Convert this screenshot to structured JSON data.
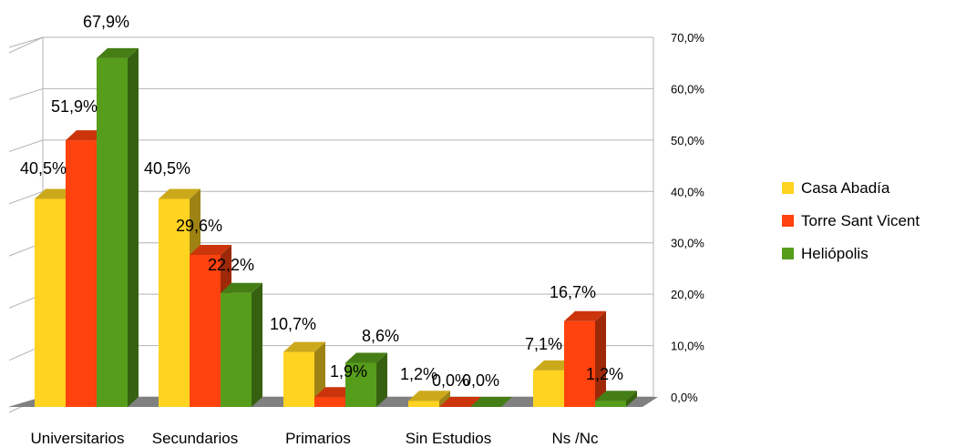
{
  "chart_data": {
    "type": "bar",
    "categories": [
      "Universitarios",
      "Secundarios",
      "Primarios",
      "Sin Estudios",
      "Ns /Nc"
    ],
    "series": [
      {
        "name": "Casa Abadía",
        "color": "#FFD320",
        "values": [
          40.5,
          40.5,
          10.7,
          1.2,
          7.1
        ],
        "labels": [
          "40,5%",
          "40,5%",
          "10,7%",
          "1,2%",
          "7,1%"
        ]
      },
      {
        "name": "Torre Sant Vicent",
        "color": "#FF420E",
        "values": [
          51.9,
          29.6,
          1.9,
          0.0,
          16.7
        ],
        "labels": [
          "51,9%",
          "29,6%",
          "1,9%",
          "0,0%",
          "16,7%"
        ]
      },
      {
        "name": "Heliópolis",
        "color": "#579D1C",
        "values": [
          67.9,
          22.2,
          8.6,
          0.0,
          1.2
        ],
        "labels": [
          "67,9%",
          "22,2%",
          "8,6%",
          "0,0%",
          "1,2%"
        ]
      }
    ],
    "ylim": [
      0,
      70
    ],
    "y_ticks": [
      0,
      10,
      20,
      30,
      40,
      50,
      60,
      70
    ],
    "y_tick_labels": [
      "0,0%",
      "10,0%",
      "20,0%",
      "30,0%",
      "40,0%",
      "50,0%",
      "60,0%",
      "70,0%"
    ],
    "grid": true,
    "legend_position": "right",
    "style": "3d"
  }
}
